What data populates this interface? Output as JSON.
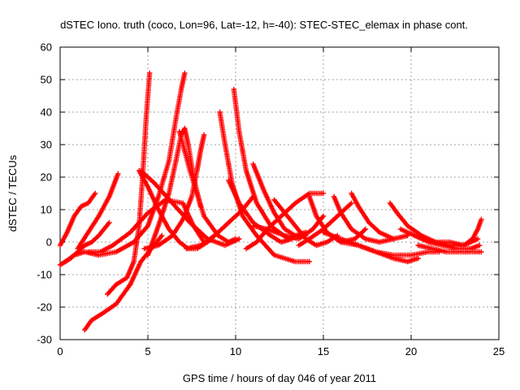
{
  "chart_data": {
    "type": "scatter",
    "title": "dSTEC Iono. truth (coco, Lon=96, Lat=-12, h=-40): STEC-STEC_elemax in phase cont.",
    "xlabel": "GPS time / hours of day 046 of year 2011",
    "ylabel": "dSTEC  / TECUs",
    "xlim": [
      0,
      25
    ],
    "ylim": [
      -30,
      60
    ],
    "xticks": [
      "0",
      "5",
      "10",
      "15",
      "20",
      "25"
    ],
    "yticks": [
      "-30",
      "-20",
      "-10",
      "0",
      "10",
      "20",
      "30",
      "40",
      "50",
      "60"
    ],
    "grid": true,
    "legend": "none",
    "marker": "plus",
    "color": "#ff0000",
    "series": [
      {
        "x": [
          0.0,
          0.4,
          0.8,
          1.2,
          1.6,
          2.0
        ],
        "y": [
          -1,
          3,
          8,
          11,
          12,
          15
        ]
      },
      {
        "x": [
          0.0,
          0.3,
          0.6,
          1.0,
          1.4,
          1.8,
          2.2,
          2.8
        ],
        "y": [
          -7,
          -6,
          -5,
          -3,
          -1,
          0,
          2,
          6
        ]
      },
      {
        "x": [
          1.0,
          1.6,
          2.2,
          2.8,
          3.3
        ],
        "y": [
          -2,
          3,
          8,
          14,
          21
        ]
      },
      {
        "x": [
          1.4,
          1.8,
          2.4,
          3.2,
          4.0,
          4.6,
          5.2,
          5.8
        ],
        "y": [
          -27,
          -24,
          -22,
          -19,
          -13,
          -6,
          -2,
          2
        ]
      },
      {
        "x": [
          2.7,
          3.2,
          3.8,
          4.2,
          4.5,
          4.7,
          4.9,
          5.1
        ],
        "y": [
          -16,
          -13,
          -11,
          -6,
          5,
          20,
          38,
          52
        ]
      },
      {
        "x": [
          1.6,
          2.3,
          3.0,
          4.0,
          5.0,
          6.0,
          7.0,
          7.6,
          8.2
        ],
        "y": [
          -3,
          -3,
          -1,
          3,
          9,
          13,
          12,
          5,
          0
        ]
      },
      {
        "x": [
          0.3,
          0.8,
          1.4,
          2.2,
          3.2,
          4.2,
          5.0,
          5.6,
          6.2,
          6.6,
          6.9,
          7.1
        ],
        "y": [
          -6,
          -4,
          -3,
          -4,
          -3,
          0,
          5,
          14,
          25,
          38,
          47,
          52
        ]
      },
      {
        "x": [
          4.5,
          5.0,
          5.6,
          6.2,
          6.8,
          7.3,
          7.8,
          8.4,
          9.0
        ],
        "y": [
          22,
          17,
          10,
          4,
          0,
          -2,
          -2,
          0,
          3
        ]
      },
      {
        "x": [
          5.0,
          5.6,
          6.2,
          6.6,
          6.9,
          7.1,
          7.3,
          7.6,
          8.0
        ],
        "y": [
          -4,
          5,
          15,
          25,
          33,
          35,
          30,
          20,
          11
        ]
      },
      {
        "x": [
          4.6,
          5.4,
          6.4,
          7.4,
          8.4,
          9.4,
          10.2
        ],
        "y": [
          22,
          18,
          12,
          6,
          1,
          -1,
          1
        ]
      },
      {
        "x": [
          4.8,
          5.6,
          6.4,
          7.0,
          7.5,
          7.8,
          8.0,
          8.2
        ],
        "y": [
          -2,
          -1,
          2,
          7,
          14,
          22,
          28,
          33
        ]
      },
      {
        "x": [
          6.8,
          7.4,
          8.2,
          9.0,
          9.6,
          10.0
        ],
        "y": [
          34,
          22,
          8,
          2,
          0,
          1
        ]
      },
      {
        "x": [
          7.2,
          8.0,
          8.8,
          9.6,
          10.4,
          11.0
        ],
        "y": [
          -2,
          -1,
          2,
          6,
          10,
          14
        ]
      },
      {
        "x": [
          9.1,
          9.4,
          9.8,
          10.4,
          11.2,
          12.2,
          13.4,
          14.2
        ],
        "y": [
          40,
          30,
          18,
          8,
          2,
          -4,
          -6,
          -6
        ]
      },
      {
        "x": [
          9.6,
          10.2,
          11.0,
          12.0,
          12.6,
          13.2
        ],
        "y": [
          19,
          12,
          6,
          2,
          0,
          1
        ]
      },
      {
        "x": [
          9.9,
          10.2,
          10.6,
          11.2,
          12.0,
          13.0,
          14.0
        ],
        "y": [
          47,
          34,
          22,
          12,
          5,
          1,
          2
        ]
      },
      {
        "x": [
          10.6,
          11.2,
          11.8,
          12.6,
          13.4,
          14.2,
          15.0
        ],
        "y": [
          -2,
          0,
          4,
          8,
          12,
          15,
          15
        ]
      },
      {
        "x": [
          11.0,
          11.6,
          12.2,
          12.8,
          13.4,
          14.0
        ],
        "y": [
          24,
          16,
          9,
          4,
          2,
          3
        ]
      },
      {
        "x": [
          11.0,
          11.8,
          12.8,
          13.6,
          14.4,
          15.0
        ],
        "y": [
          5,
          4,
          2,
          1,
          4,
          8
        ]
      },
      {
        "x": [
          12.2,
          12.8,
          13.4,
          14.0,
          14.6,
          15.2,
          15.8
        ],
        "y": [
          13,
          9,
          5,
          1,
          -1,
          0,
          2
        ]
      },
      {
        "x": [
          14.2,
          14.6,
          15.2,
          16.0,
          16.8,
          17.4
        ],
        "y": [
          14,
          8,
          3,
          0,
          1,
          4
        ]
      },
      {
        "x": [
          13.6,
          14.2,
          15.0,
          15.8,
          16.6
        ],
        "y": [
          -1,
          1,
          4,
          8,
          12
        ]
      },
      {
        "x": [
          15.6,
          16.0,
          16.6,
          17.4,
          18.2,
          19.0
        ],
        "y": [
          14,
          9,
          4,
          1,
          0,
          1
        ]
      },
      {
        "x": [
          16.6,
          17.0,
          17.6,
          18.2,
          19.0,
          19.8
        ],
        "y": [
          15,
          11,
          6,
          3,
          1,
          2
        ]
      },
      {
        "x": [
          15.0,
          16.0,
          17.0,
          18.0,
          19.0,
          20.0,
          21.0,
          21.6
        ],
        "y": [
          3,
          1,
          -1,
          -3,
          -4,
          -4,
          -3,
          -3
        ]
      },
      {
        "x": [
          16.0,
          17.0,
          18.0,
          19.0,
          19.8,
          20.4
        ],
        "y": [
          0,
          -1,
          -3,
          -5,
          -6,
          -5
        ]
      },
      {
        "x": [
          18.8,
          19.2,
          19.8,
          20.6,
          21.4,
          22.2,
          23.0,
          23.8
        ],
        "y": [
          12,
          9,
          5,
          2,
          0,
          -1,
          -1,
          1
        ]
      },
      {
        "x": [
          19.4,
          20.2,
          21.0,
          21.8,
          22.6,
          23.4,
          23.9
        ],
        "y": [
          4,
          2,
          0,
          -1,
          -2,
          -2,
          -1
        ]
      },
      {
        "x": [
          20.4,
          21.2,
          22.0,
          22.8,
          23.4,
          24.0
        ],
        "y": [
          -1,
          -2,
          -3,
          -3,
          -3,
          -3
        ]
      },
      {
        "x": [
          21.4,
          22.2,
          23.0,
          23.5,
          23.8,
          24.0
        ],
        "y": [
          0,
          0,
          -1,
          1,
          4,
          7
        ]
      }
    ]
  }
}
